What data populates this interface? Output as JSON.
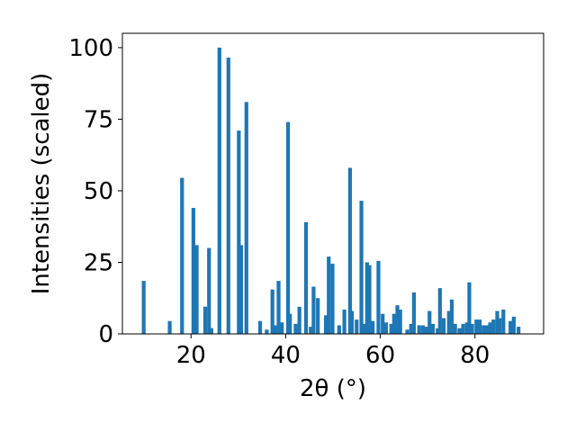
{
  "chart_data": {
    "type": "bar",
    "title": "",
    "xlabel": "2θ (°)",
    "ylabel": "Intensities (scaled)",
    "xlim": [
      5.5,
      94.5
    ],
    "ylim": [
      0,
      105
    ],
    "x_ticks": [
      20,
      40,
      60,
      80
    ],
    "y_ticks": [
      0,
      25,
      50,
      75,
      100
    ],
    "x_tick_labels": [
      "20",
      "40",
      "60",
      "80"
    ],
    "y_tick_labels": [
      "0",
      "25",
      "50",
      "75",
      "100"
    ],
    "grid": false,
    "bar_width": 0.8,
    "color": "#1f77b4",
    "x": [
      10.0,
      15.5,
      18.1,
      20.5,
      21.2,
      23.0,
      23.8,
      24.3,
      26.0,
      27.9,
      30.1,
      30.6,
      31.7,
      34.6,
      36.0,
      37.2,
      37.7,
      38.5,
      39.2,
      40.5,
      40.9,
      42.1,
      42.9,
      44.3,
      45.3,
      45.9,
      46.8,
      48.5,
      49.1,
      49.9,
      51.3,
      52.4,
      53.6,
      54.0,
      55.0,
      56.0,
      56.6,
      57.2,
      57.7,
      58.4,
      59.6,
      60.5,
      61.2,
      62.3,
      62.9,
      63.6,
      64.2,
      65.7,
      66.5,
      67.1,
      68.2,
      69.0,
      69.8,
      70.4,
      71.1,
      72.1,
      72.6,
      73.4,
      74.5,
      75.1,
      75.8,
      76.7,
      77.5,
      78.3,
      78.8,
      79.4,
      80.3,
      81.0,
      81.8,
      82.5,
      83.2,
      83.9,
      84.7,
      85.2,
      86.0,
      87.5,
      88.2,
      89.2
    ],
    "values": [
      18.5,
      4.5,
      54.5,
      44.0,
      31.0,
      9.5,
      30.0,
      2.0,
      100.0,
      96.5,
      71.0,
      31.0,
      81.0,
      4.5,
      1.5,
      15.5,
      3.0,
      18.5,
      4.0,
      74.0,
      7.0,
      3.5,
      9.5,
      39.0,
      2.5,
      16.5,
      12.5,
      6.5,
      27.0,
      24.5,
      3.0,
      8.5,
      58.0,
      8.0,
      5.0,
      46.5,
      3.5,
      25.0,
      24.0,
      4.5,
      25.5,
      7.0,
      4.0,
      3.5,
      7.0,
      10.0,
      8.5,
      1.5,
      3.5,
      14.5,
      3.0,
      3.0,
      2.5,
      8.0,
      3.5,
      2.0,
      16.0,
      5.5,
      8.0,
      12.0,
      3.5,
      2.0,
      3.5,
      4.0,
      18.0,
      3.5,
      5.0,
      5.0,
      3.0,
      3.0,
      4.0,
      5.0,
      8.0,
      5.5,
      8.5,
      4.5,
      6.0,
      2.5
    ]
  }
}
